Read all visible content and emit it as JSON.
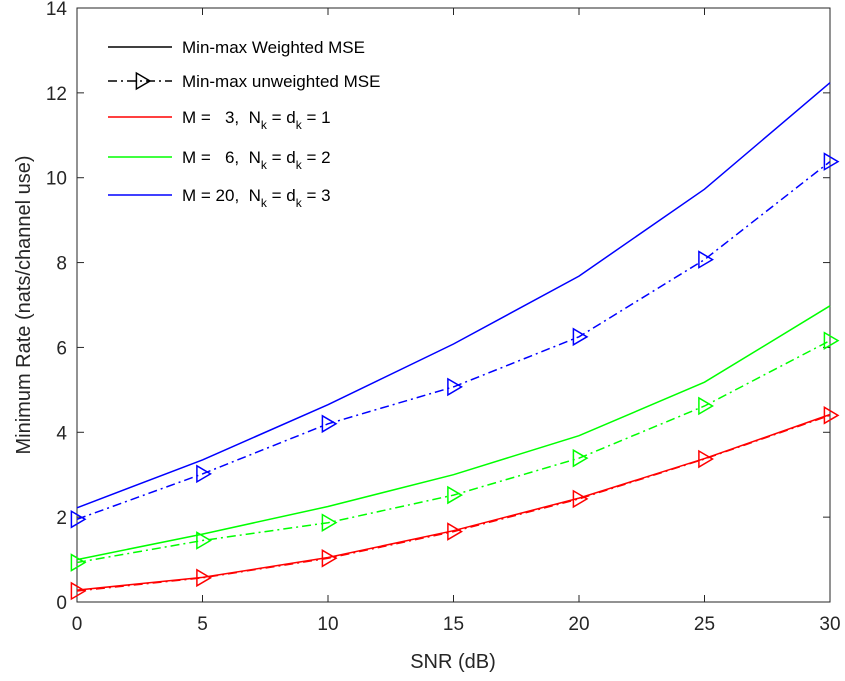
{
  "chart_data": {
    "type": "line",
    "title": "",
    "xlabel": "SNR (dB)",
    "ylabel": "Minimum Rate (nats/channel use)",
    "xlim": [
      0,
      30
    ],
    "ylim": [
      0,
      14
    ],
    "xticks": [
      0,
      5,
      10,
      15,
      20,
      25,
      30
    ],
    "yticks": [
      0,
      2,
      4,
      6,
      8,
      10,
      12,
      14
    ],
    "grid": false,
    "legend_position": "top-left",
    "x": [
      0,
      5,
      10,
      15,
      20,
      25,
      30
    ],
    "series": [
      {
        "name": "",
        "config": "M=3",
        "style": "solid",
        "color": "#ff0000",
        "values": [
          0.28,
          0.58,
          1.05,
          1.68,
          2.45,
          3.38,
          4.42
        ]
      },
      {
        "name": "",
        "config": "M=3",
        "style": "dashdot-triangle",
        "color": "#ff0000",
        "values": [
          0.26,
          0.57,
          1.03,
          1.66,
          2.43,
          3.37,
          4.4
        ]
      },
      {
        "name": "",
        "config": "M=6",
        "style": "solid",
        "color": "#00ff00",
        "values": [
          1.0,
          1.6,
          2.25,
          3.0,
          3.92,
          5.18,
          6.98
        ]
      },
      {
        "name": "",
        "config": "M=6",
        "style": "dashdot-triangle",
        "color": "#00ff00",
        "values": [
          0.93,
          1.45,
          1.87,
          2.52,
          3.39,
          4.62,
          6.16
        ]
      },
      {
        "name": "",
        "config": "M=20",
        "style": "solid",
        "color": "#0000ff",
        "values": [
          2.22,
          3.35,
          4.65,
          6.08,
          7.68,
          9.73,
          12.24
        ]
      },
      {
        "name": "",
        "config": "M=20",
        "style": "dashdot-triangle",
        "color": "#0000ff",
        "values": [
          1.95,
          3.02,
          4.2,
          5.07,
          6.25,
          8.07,
          10.38
        ]
      }
    ],
    "legend": [
      {
        "label": "Min-max Weighted MSE",
        "style": "solid",
        "color": "#000000"
      },
      {
        "label": "Min-max unweighted MSE",
        "style": "dashdot-triangle",
        "color": "#000000"
      },
      {
        "label_main": "M =   3,  N",
        "sub1": "k",
        "mid": " = d",
        "sub2": "k",
        "tail": " = 1",
        "style": "solid",
        "color": "#ff0000"
      },
      {
        "label_main": "M =   6,  N",
        "sub1": "k",
        "mid": " = d",
        "sub2": "k",
        "tail": " = 2",
        "style": "solid",
        "color": "#00ff00"
      },
      {
        "label_main": "M = 20,  N",
        "sub1": "k",
        "mid": " = d",
        "sub2": "k",
        "tail": " = 3",
        "style": "solid",
        "color": "#0000ff"
      }
    ]
  }
}
